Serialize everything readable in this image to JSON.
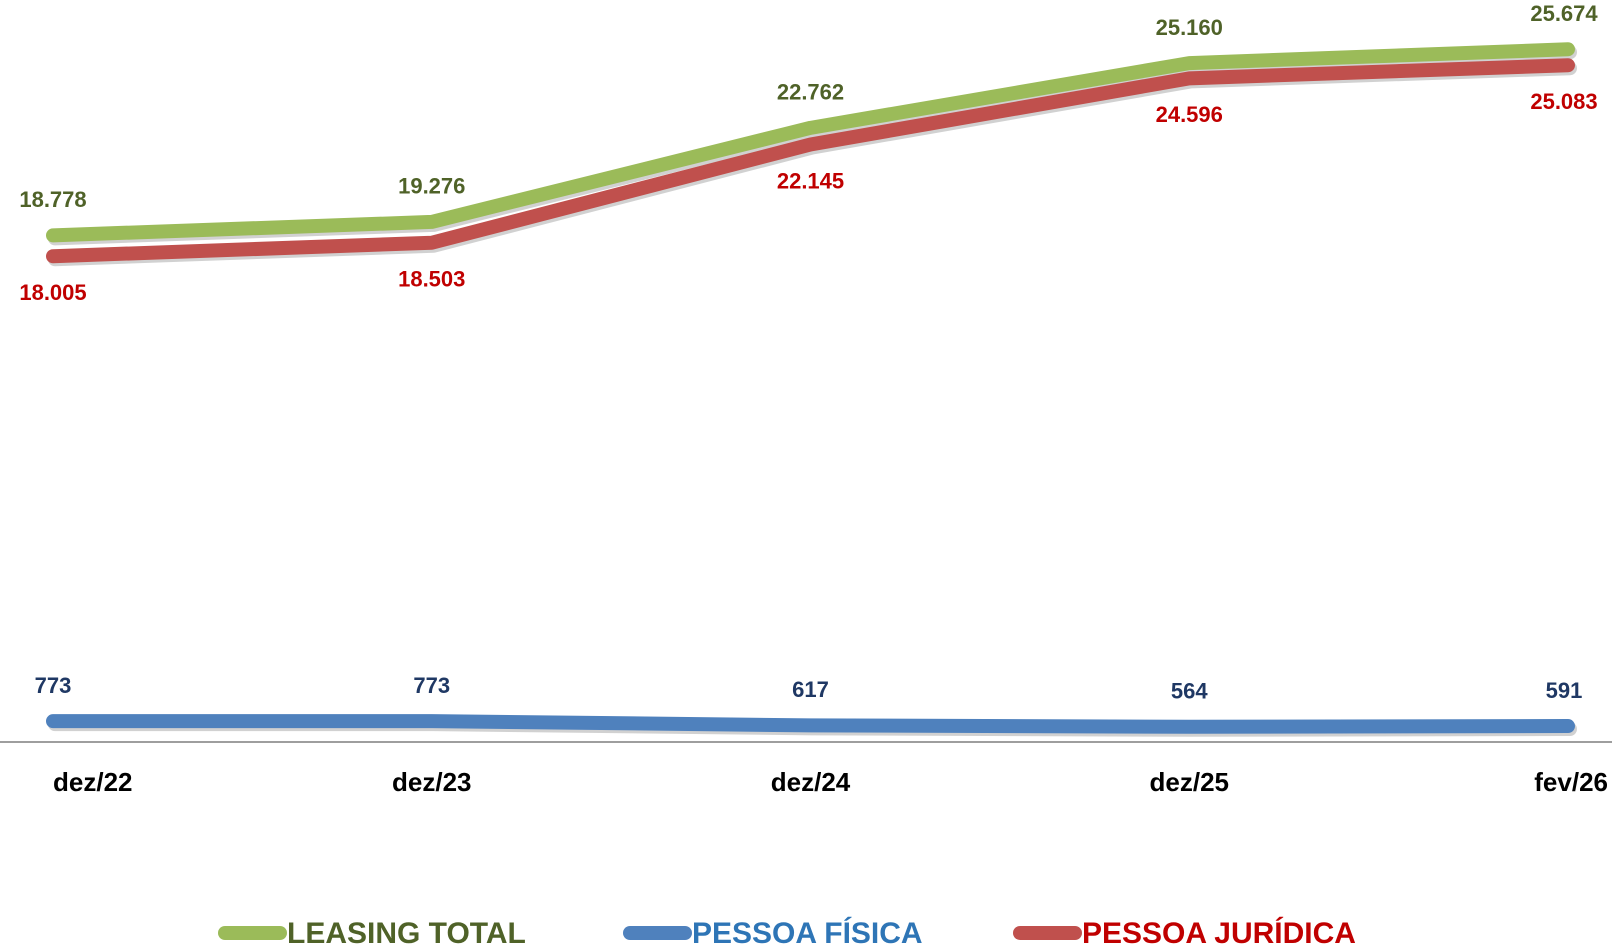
{
  "chart_data": {
    "type": "line",
    "categories": [
      "dez/22",
      "dez/23",
      "dez/24",
      "dez/25",
      "fev/26"
    ],
    "series": [
      {
        "name": "LEASING TOTAL",
        "color": "#9bbb59",
        "label_color": "#4f6228",
        "label_position": "above",
        "values": [
          18778,
          19276,
          22762,
          25160,
          25674
        ],
        "value_labels": [
          "18.778",
          "19.276",
          "22.762",
          "25.160",
          "25.674"
        ]
      },
      {
        "name": "PESSOA FÍSICA",
        "color": "#4f81bd",
        "label_color": "#1f3864",
        "legend_text_color": "#2e75b6",
        "label_position": "above",
        "values": [
          773,
          773,
          617,
          564,
          591
        ],
        "value_labels": [
          "773",
          "773",
          "617",
          "564",
          "591"
        ]
      },
      {
        "name": "PESSOA JURÍDICA",
        "color": "#c0504d",
        "label_color": "#c00000",
        "label_position": "below",
        "values": [
          18005,
          18503,
          22145,
          24596,
          25083
        ],
        "value_labels": [
          "18.005",
          "18.503",
          "22.145",
          "24.596",
          "25.083"
        ]
      }
    ],
    "ylim": [
      0,
      27500
    ],
    "legend": "bottom"
  }
}
